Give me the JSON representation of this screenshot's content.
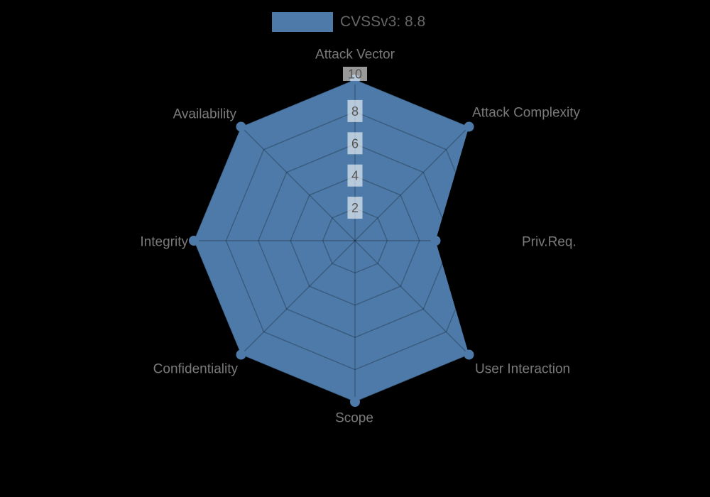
{
  "title": "CVSSv3 radar chart",
  "legend": {
    "label": "CVSSv3: 8.8",
    "swatch_color": "#4d7aa8"
  },
  "colors": {
    "background": "#000000",
    "series_fill": "#4d7aa8",
    "grid_line": "rgba(0,0,0,0.25)",
    "axis_label": "#7a7a7a",
    "tick_label": "#555555",
    "tick_label_box": "rgba(255,255,255,0.6)",
    "legend_text": "#666666"
  },
  "chart_data": {
    "type": "radar",
    "title": "CVSSv3: 8.8",
    "categories": [
      "Attack Vector",
      "Attack Complexity",
      "Priv.Req.",
      "User Interaction",
      "Scope",
      "Confidentiality",
      "Integrity",
      "Availability"
    ],
    "series": [
      {
        "name": "CVSSv3: 8.8",
        "values": [
          10,
          10,
          5,
          10,
          10,
          10,
          10,
          10
        ],
        "color": "#4d7aa8"
      }
    ],
    "ticks": [
      2,
      4,
      6,
      8,
      10
    ],
    "rlim": [
      0,
      10
    ],
    "grid": true,
    "grid_shape": "polygon",
    "legend_position": "top-center",
    "background": "transparent-on-black"
  }
}
